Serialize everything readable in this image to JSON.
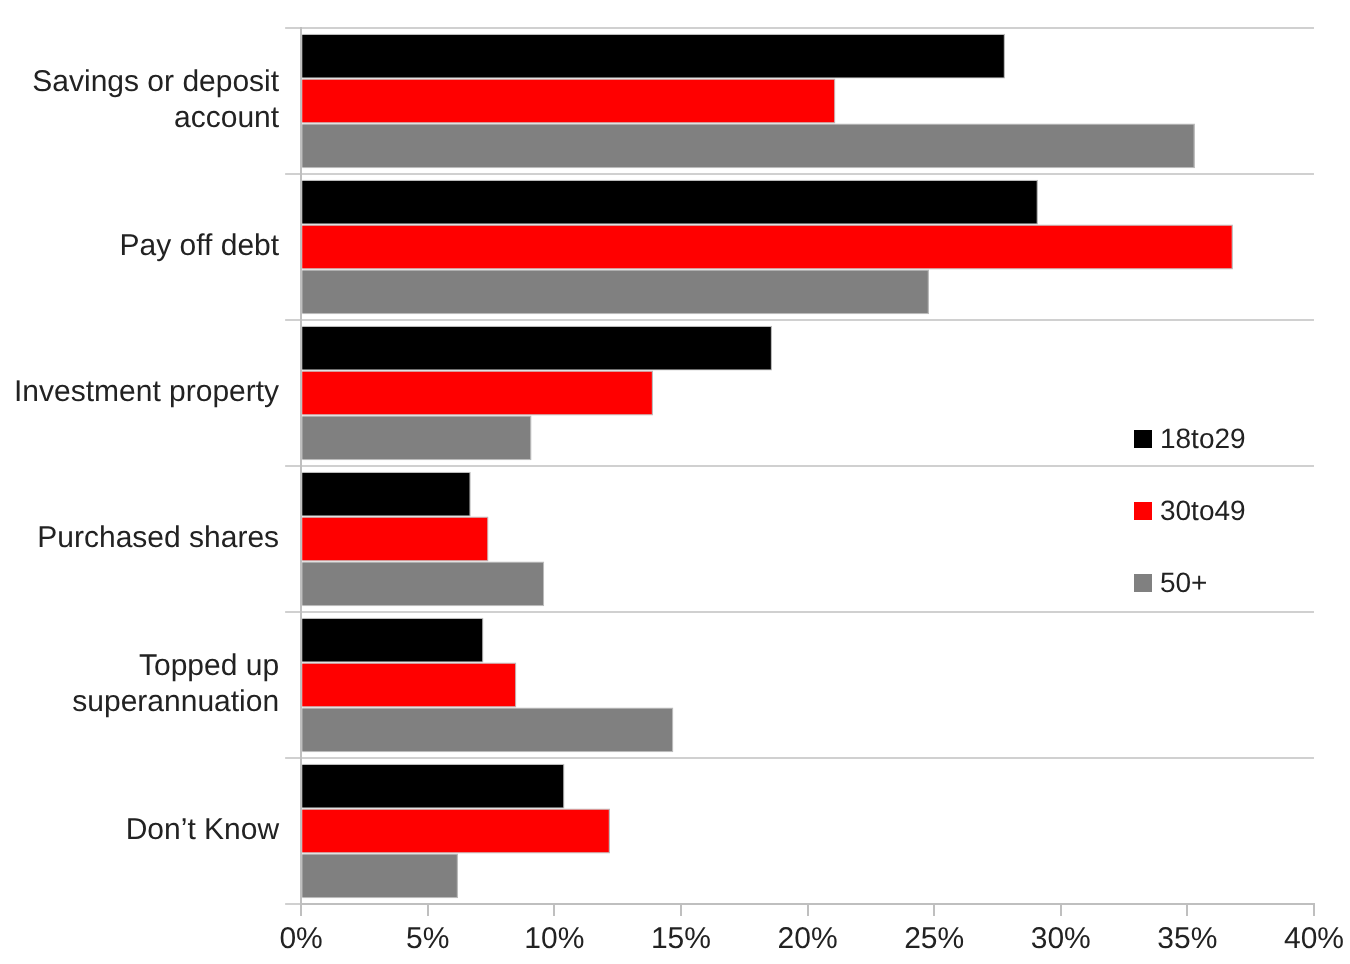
{
  "chart_data": {
    "type": "bar",
    "orientation": "horizontal",
    "categories": [
      "Savings or deposit account",
      "Pay off debt",
      "Investment property",
      "Purchased shares",
      "Topped up superannuation",
      "Don’t Know"
    ],
    "series": [
      {
        "name": "18to29",
        "color": "#000000",
        "values": [
          27.8,
          29.1,
          18.6,
          6.7,
          7.2,
          10.4
        ]
      },
      {
        "name": "30to49",
        "color": "#ff0000",
        "values": [
          21.1,
          36.8,
          13.9,
          7.4,
          8.5,
          12.2
        ]
      },
      {
        "name": "50+",
        "color": "#808080",
        "values": [
          35.3,
          24.8,
          9.1,
          9.6,
          14.7,
          6.2
        ]
      }
    ],
    "xlim": [
      0,
      40
    ],
    "xticks": [
      {
        "value": 0,
        "label": "0%"
      },
      {
        "value": 5,
        "label": "5%"
      },
      {
        "value": 10,
        "label": "10%"
      },
      {
        "value": 15,
        "label": "15%"
      },
      {
        "value": 20,
        "label": "20%"
      },
      {
        "value": 25,
        "label": "25%"
      },
      {
        "value": 30,
        "label": "30%"
      },
      {
        "value": 35,
        "label": "35%"
      },
      {
        "value": 40,
        "label": "40%"
      }
    ],
    "grid": "y",
    "legend": "right"
  }
}
